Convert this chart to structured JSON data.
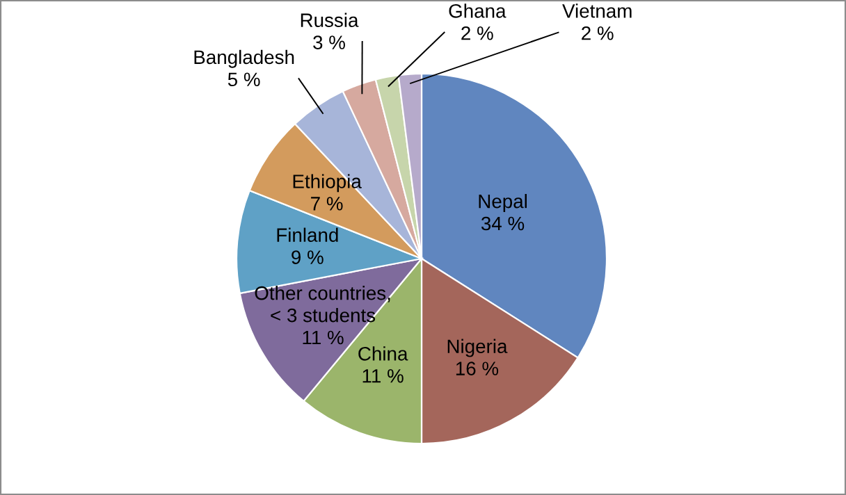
{
  "chart_data": {
    "type": "pie",
    "categories": [
      "Nepal",
      "Nigeria",
      "China",
      "Other countries,\n< 3 students",
      "Finland",
      "Ethiopia",
      "Bangladesh",
      "Russia",
      "Ghana",
      "Vietnam"
    ],
    "values": [
      34,
      16,
      11,
      11,
      9,
      7,
      5,
      3,
      2,
      2
    ],
    "value_labels": [
      "34 %",
      "16 %",
      "11 %",
      "11 %",
      "9 %",
      "7 %",
      "5 %",
      "3 %",
      "2 %",
      "2 %"
    ],
    "colors": [
      "#6086bf",
      "#a4665b",
      "#9bb56b",
      "#7f6b9c",
      "#5fa1c6",
      "#d39b5d",
      "#a7b5d9",
      "#d6a99f",
      "#c7d5ab",
      "#b6aacb"
    ],
    "legend": false
  }
}
